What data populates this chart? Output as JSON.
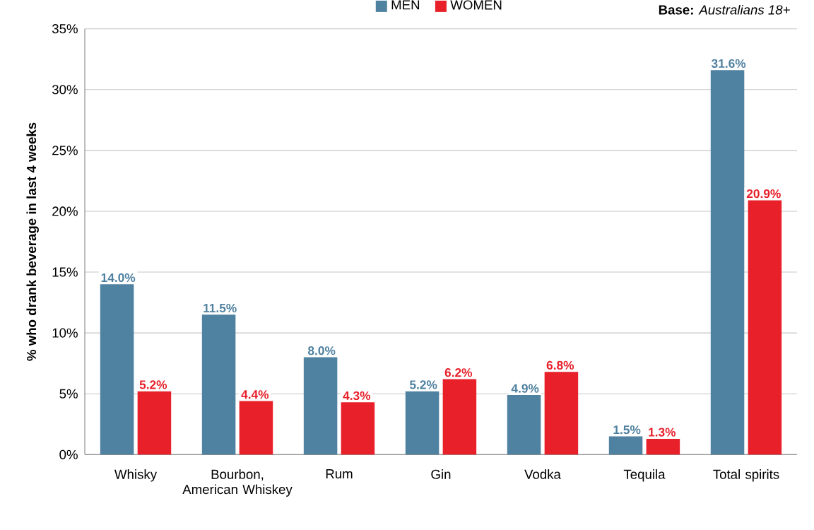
{
  "chart_data": {
    "type": "bar",
    "ylabel": "% who drank beverage in last 4 weeks",
    "annotations": [
      "**Base:** *Australians 18+*"
    ],
    "categories": [
      "Whisky",
      "Bourbon, American Whiskey",
      "Rum",
      "Gin",
      "Vodka",
      "Tequila",
      "Total spirits"
    ],
    "series": [
      {
        "name": "MEN",
        "color": "#4f81a0",
        "values": [
          14.0,
          11.5,
          8.0,
          5.2,
          4.9,
          1.5,
          31.6
        ],
        "value_labels": [
          "14.0%",
          "11.5%",
          "8.0%",
          "5.2%",
          "4.9%",
          "1.5%",
          "31.6%"
        ]
      },
      {
        "name": "WOMEN",
        "color": "#e8202a",
        "values": [
          5.2,
          4.4,
          4.3,
          6.2,
          6.8,
          1.3,
          20.9
        ],
        "value_labels": [
          "5.2%",
          "4.4%",
          "4.3%",
          "6.2%",
          "6.8%",
          "1.3%",
          "20.9%"
        ]
      }
    ],
    "ylim": [
      0,
      35
    ],
    "yticks": [
      {
        "value": 0,
        "label": "0%"
      },
      {
        "value": 5,
        "label": "5%"
      },
      {
        "value": 10,
        "label": "10%"
      },
      {
        "value": 15,
        "label": "15%"
      },
      {
        "value": 20,
        "label": "20%"
      },
      {
        "value": 25,
        "label": "25%"
      },
      {
        "value": 30,
        "label": "30%"
      },
      {
        "value": 35,
        "label": "35%"
      }
    ],
    "grid": "y",
    "legend": "top"
  }
}
